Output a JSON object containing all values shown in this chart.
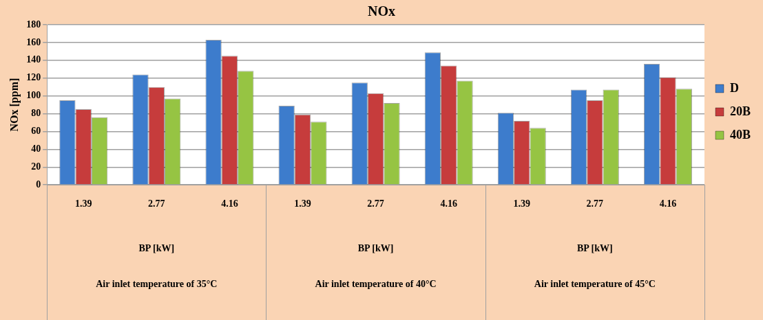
{
  "chart_data": {
    "type": "bar",
    "title": "NOx",
    "ylabel": "NOx [ppm]",
    "categories": [
      "1.39",
      "2.77",
      "4.16",
      "1.39",
      "2.77",
      "4.16",
      "1.39",
      "2.77",
      "4.16"
    ],
    "series": [
      {
        "name": "D",
        "color": "#3d7ccc",
        "values": [
          95,
          124,
          163,
          89,
          115,
          149,
          81,
          107,
          136
        ]
      },
      {
        "name": "20B",
        "color": "#c63c3c",
        "values": [
          85,
          110,
          145,
          79,
          103,
          134,
          72,
          95,
          121
        ]
      },
      {
        "name": "40B",
        "color": "#96c443",
        "values": [
          76,
          97,
          128,
          71,
          92,
          117,
          64,
          107,
          108
        ]
      }
    ],
    "annotations": [
      "BP [kW]",
      "BP [kW]",
      "BP [kW]",
      "Air inlet temperature of 35°C",
      "Air inlet temperature of 40°C",
      "Air inlet temperature of 45°C"
    ],
    "ylim": [
      0,
      180
    ],
    "yticks": [
      0,
      20,
      40,
      60,
      80,
      100,
      120,
      140,
      160,
      180
    ],
    "grid": "y",
    "legend": "right"
  }
}
